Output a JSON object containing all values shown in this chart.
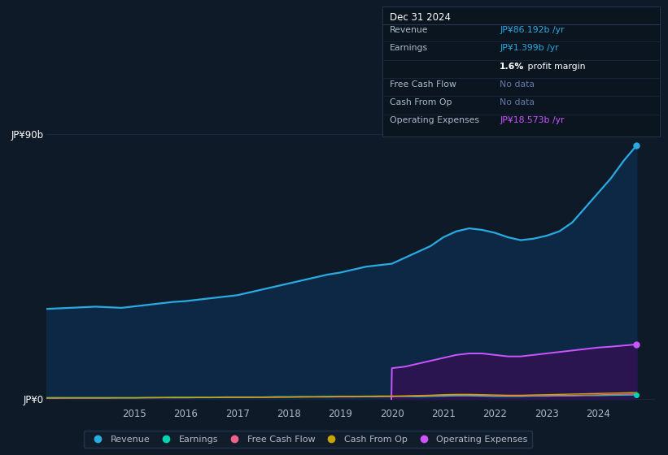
{
  "bg_color": "#0e1a27",
  "plot_bg_color": "#0e1a27",
  "grid_color": "#1b2d42",
  "text_color": "#b0b8c8",
  "years": [
    2013.0,
    2013.25,
    2013.5,
    2013.75,
    2014.0,
    2014.25,
    2014.5,
    2014.75,
    2015.0,
    2015.25,
    2015.5,
    2015.75,
    2016.0,
    2016.25,
    2016.5,
    2016.75,
    2017.0,
    2017.25,
    2017.5,
    2017.75,
    2018.0,
    2018.25,
    2018.5,
    2018.75,
    2019.0,
    2019.25,
    2019.5,
    2019.75,
    2020.0,
    2020.25,
    2020.5,
    2020.75,
    2021.0,
    2021.25,
    2021.5,
    2021.75,
    2022.0,
    2022.25,
    2022.5,
    2022.75,
    2023.0,
    2023.25,
    2023.5,
    2023.75,
    2024.0,
    2024.25,
    2024.5,
    2024.75
  ],
  "revenue": [
    30.5,
    30.6,
    30.8,
    31.0,
    31.2,
    31.4,
    31.2,
    31.0,
    31.5,
    32.0,
    32.5,
    33.0,
    33.3,
    33.8,
    34.3,
    34.8,
    35.3,
    36.3,
    37.3,
    38.3,
    39.3,
    40.3,
    41.3,
    42.3,
    43.0,
    44.0,
    45.0,
    45.5,
    46.0,
    48.0,
    50.0,
    52.0,
    55.0,
    57.0,
    58.0,
    57.5,
    56.5,
    55.0,
    54.0,
    54.5,
    55.5,
    57.0,
    60.0,
    65.0,
    70.0,
    75.0,
    81.0,
    86.192
  ],
  "earnings": [
    0.5,
    0.5,
    0.5,
    0.5,
    0.5,
    0.5,
    0.5,
    0.5,
    0.5,
    0.5,
    0.5,
    0.6,
    0.6,
    0.6,
    0.6,
    0.7,
    0.7,
    0.7,
    0.7,
    0.8,
    0.8,
    0.8,
    0.8,
    0.9,
    0.9,
    0.9,
    1.0,
    1.0,
    1.0,
    0.9,
    0.8,
    0.9,
    1.0,
    1.1,
    1.1,
    1.0,
    0.9,
    0.9,
    0.9,
    1.0,
    1.0,
    1.1,
    1.1,
    1.2,
    1.2,
    1.3,
    1.35,
    1.399
  ],
  "free_cash_flow": [
    0.3,
    0.3,
    0.3,
    0.35,
    0.35,
    0.35,
    0.35,
    0.4,
    0.4,
    0.4,
    0.45,
    0.45,
    0.45,
    0.5,
    0.5,
    0.55,
    0.55,
    0.55,
    0.6,
    0.6,
    0.65,
    0.65,
    0.7,
    0.7,
    0.75,
    0.75,
    0.8,
    0.8,
    0.85,
    0.95,
    1.05,
    1.15,
    1.25,
    1.35,
    1.35,
    1.25,
    1.15,
    1.05,
    1.05,
    1.15,
    1.15,
    1.25,
    1.25,
    1.35,
    1.45,
    1.55,
    1.65,
    1.75
  ],
  "cash_from_op": [
    0.4,
    0.4,
    0.4,
    0.4,
    0.4,
    0.4,
    0.4,
    0.4,
    0.4,
    0.5,
    0.5,
    0.5,
    0.5,
    0.5,
    0.5,
    0.6,
    0.6,
    0.6,
    0.6,
    0.7,
    0.7,
    0.8,
    0.8,
    0.8,
    0.9,
    0.9,
    0.9,
    1.0,
    1.0,
    1.1,
    1.2,
    1.3,
    1.5,
    1.6,
    1.6,
    1.5,
    1.4,
    1.3,
    1.3,
    1.4,
    1.5,
    1.6,
    1.7,
    1.8,
    1.9,
    2.0,
    2.1,
    2.2
  ],
  "op_expenses_x": [
    2019.99,
    2020.0,
    2020.25,
    2020.5,
    2020.75,
    2021.0,
    2021.25,
    2021.5,
    2021.75,
    2022.0,
    2022.25,
    2022.5,
    2022.75,
    2023.0,
    2023.25,
    2023.5,
    2023.75,
    2024.0,
    2024.25,
    2024.5,
    2024.75
  ],
  "op_expenses_y": [
    0.0,
    10.5,
    11.0,
    12.0,
    13.0,
    14.0,
    15.0,
    15.5,
    15.5,
    15.0,
    14.5,
    14.5,
    15.0,
    15.5,
    16.0,
    16.5,
    17.0,
    17.5,
    17.8,
    18.2,
    18.573
  ],
  "revenue_color": "#29abe2",
  "earnings_color": "#00d4b0",
  "free_cash_flow_color": "#f0628a",
  "cash_from_op_color": "#c8a400",
  "op_expenses_color": "#cc55ff",
  "op_expenses_fill_color": "#2a1550",
  "revenue_fill_color": "#0d2845",
  "ylim_max": 90,
  "ylim_min": -2,
  "xlim_min": 2013.3,
  "xlim_max": 2025.1,
  "yticks": [
    0,
    90
  ],
  "ytick_labels": [
    "JP¥0",
    "JP¥90b"
  ],
  "xticks": [
    2015,
    2016,
    2017,
    2018,
    2019,
    2020,
    2021,
    2022,
    2023,
    2024
  ],
  "legend_labels": [
    "Revenue",
    "Earnings",
    "Free Cash Flow",
    "Cash From Op",
    "Operating Expenses"
  ],
  "legend_colors": [
    "#29abe2",
    "#00d4b0",
    "#f0628a",
    "#c8a400",
    "#cc55ff"
  ],
  "info_box": {
    "date": "Dec 31 2024",
    "rows": [
      {
        "label": "Revenue",
        "value": "JP¥86.192b /yr",
        "value_color": "#29abe2",
        "bold_prefix": null
      },
      {
        "label": "Earnings",
        "value": "JP¥1.399b /yr",
        "value_color": "#29abe2",
        "bold_prefix": null
      },
      {
        "label": "",
        "value": "1.6% profit margin",
        "value_color": "#ffffff",
        "bold_prefix": "1.6%"
      },
      {
        "label": "Free Cash Flow",
        "value": "No data",
        "value_color": "#6677aa",
        "bold_prefix": null
      },
      {
        "label": "Cash From Op",
        "value": "No data",
        "value_color": "#6677aa",
        "bold_prefix": null
      },
      {
        "label": "Operating Expenses",
        "value": "JP¥18.573b /yr",
        "value_color": "#cc55ff",
        "bold_prefix": null
      }
    ]
  }
}
